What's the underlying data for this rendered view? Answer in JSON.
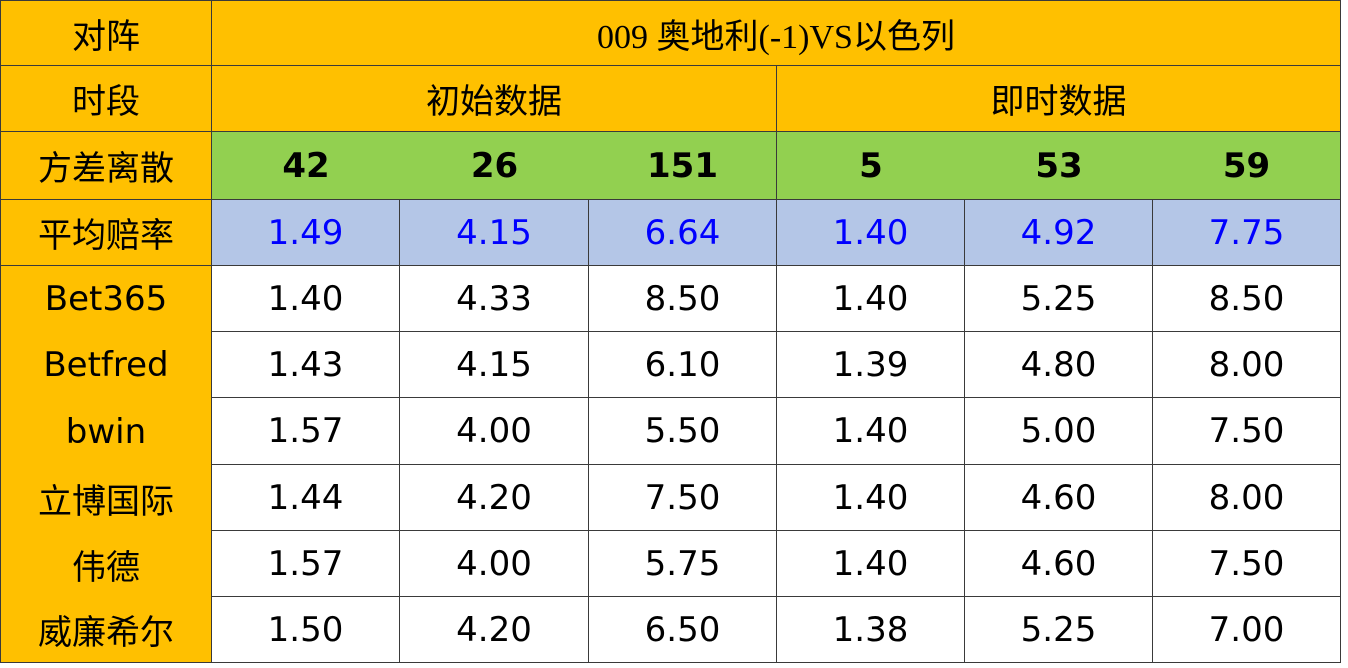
{
  "table": {
    "header": {
      "label": "对阵",
      "match": "009 奥地利(-1)VS以色列"
    },
    "period": {
      "label": "时段",
      "initial": "初始数据",
      "live": "即时数据"
    },
    "variance": {
      "label": "方差离散",
      "values": [
        "42",
        "26",
        "151",
        "5",
        "53",
        "59"
      ]
    },
    "average": {
      "label": "平均赔率",
      "values": [
        "1.49",
        "4.15",
        "6.64",
        "1.40",
        "4.92",
        "7.75"
      ]
    },
    "rows": [
      {
        "name": "Bet365",
        "values": [
          "1.40",
          "4.33",
          "8.50",
          "1.40",
          "5.25",
          "8.50"
        ]
      },
      {
        "name": "Betfred",
        "values": [
          "1.43",
          "4.15",
          "6.10",
          "1.39",
          "4.80",
          "8.00"
        ]
      },
      {
        "name": "bwin",
        "values": [
          "1.57",
          "4.00",
          "5.50",
          "1.40",
          "5.00",
          "7.50"
        ]
      },
      {
        "name": "立博国际",
        "values": [
          "1.44",
          "4.20",
          "7.50",
          "1.40",
          "4.60",
          "8.00"
        ]
      },
      {
        "name": "伟德",
        "values": [
          "1.57",
          "4.00",
          "5.75",
          "1.40",
          "4.60",
          "7.50"
        ]
      },
      {
        "name": "威廉希尔",
        "values": [
          "1.50",
          "4.20",
          "6.50",
          "1.38",
          "5.25",
          "7.00"
        ]
      }
    ]
  }
}
